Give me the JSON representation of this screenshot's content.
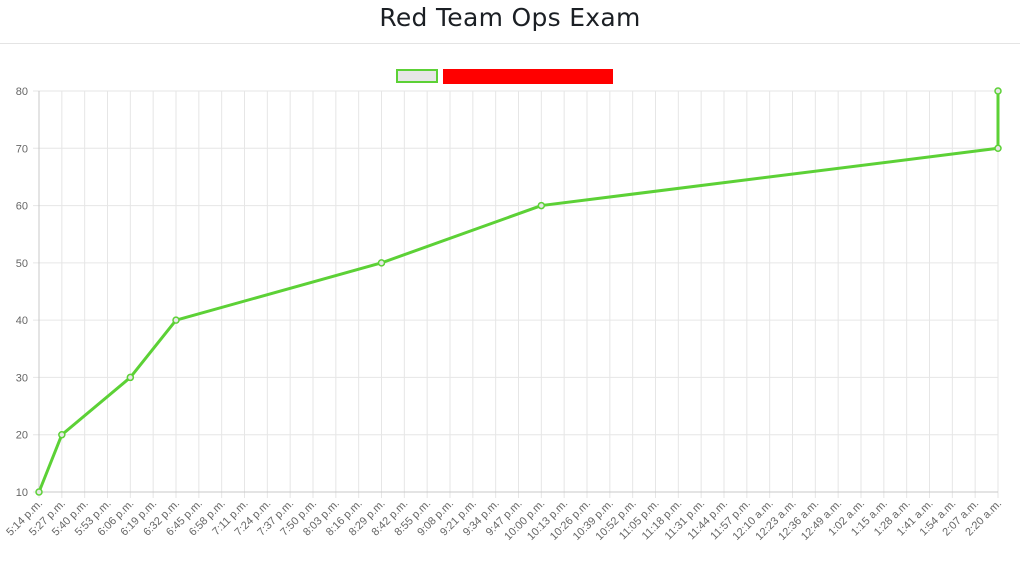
{
  "page": {
    "title": "Red Team Ops Exam"
  },
  "colors": {
    "series_line": "#5cd136",
    "legend_fill": "#e6e6e6",
    "legend_redacted": "#ff0000",
    "grid": "#e6e6e6",
    "axis": "#c8c8c8",
    "tick_text": "#666666"
  },
  "chart_data": {
    "type": "line",
    "title": "Red Team Ops Exam",
    "xlabel": "",
    "ylabel": "",
    "legend": {
      "placement": "top-center",
      "label_redacted": true
    },
    "grid": true,
    "ylim": [
      10,
      80
    ],
    "yticks": [
      10,
      20,
      30,
      40,
      50,
      60,
      70,
      80
    ],
    "x_categories": [
      "5:14 p.m.",
      "5:27 p.m.",
      "5:40 p.m.",
      "5:53 p.m.",
      "6:06 p.m.",
      "6:19 p.m.",
      "6:32 p.m.",
      "6:45 p.m.",
      "6:58 p.m.",
      "7:11 p.m.",
      "7:24 p.m.",
      "7:37 p.m.",
      "7:50 p.m.",
      "8:03 p.m.",
      "8:16 p.m.",
      "8:29 p.m.",
      "8:42 p.m.",
      "8:55 p.m.",
      "9:08 p.m.",
      "9:21 p.m.",
      "9:34 p.m.",
      "9:47 p.m.",
      "10:00 p.m.",
      "10:13 p.m.",
      "10:26 p.m.",
      "10:39 p.m.",
      "10:52 p.m.",
      "11:05 p.m.",
      "11:18 p.m.",
      "11:31 p.m.",
      "11:44 p.m.",
      "11:57 p.m.",
      "12:10 a.m.",
      "12:23 a.m.",
      "12:36 a.m.",
      "12:49 a.m.",
      "1:02 a.m.",
      "1:15 a.m.",
      "1:28 a.m.",
      "1:41 a.m.",
      "1:54 a.m.",
      "2:07 a.m.",
      "2:20 a.m."
    ],
    "series": [
      {
        "points": [
          {
            "x": "5:14 p.m.",
            "y": 10
          },
          {
            "x": "5:27 p.m.",
            "y": 20
          },
          {
            "x": "6:06 p.m.",
            "y": 30
          },
          {
            "x": "6:32 p.m.",
            "y": 40
          },
          {
            "x": "8:29 p.m.",
            "y": 50
          },
          {
            "x": "10:00 p.m.",
            "y": 60
          },
          {
            "x": "2:20 a.m.",
            "y": 70
          },
          {
            "x": "2:20 a.m.",
            "y": 80
          }
        ]
      }
    ]
  }
}
